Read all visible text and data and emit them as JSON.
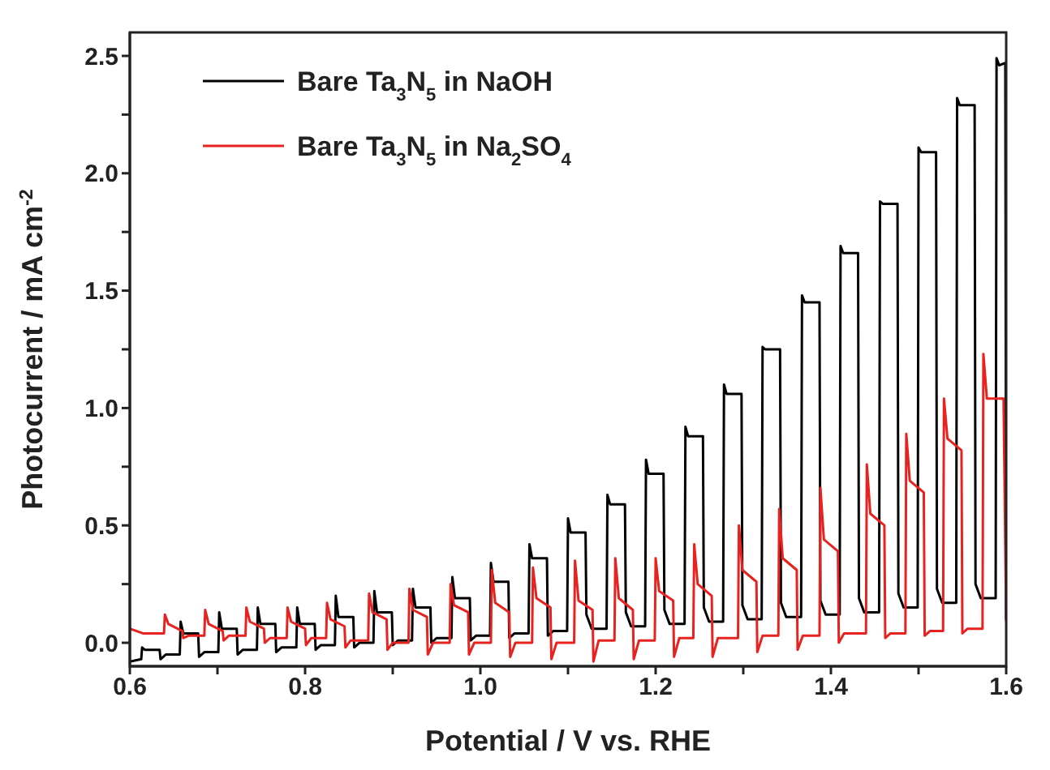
{
  "chart_data": {
    "type": "line",
    "xlabel": "Potential / V vs. RHE",
    "ylabel": "Photocurrent / mA cm$^{-2}$",
    "xlim": [
      0.6,
      1.6
    ],
    "ylim": [
      -0.1,
      2.6
    ],
    "xticks": [
      {
        "value": 0.6,
        "label": "0.6"
      },
      {
        "value": 0.7,
        "label": null
      },
      {
        "value": 0.8,
        "label": "0.8"
      },
      {
        "value": 0.9,
        "label": null
      },
      {
        "value": 1,
        "label": "1.0"
      },
      {
        "value": 1.1,
        "label": null
      },
      {
        "value": 1.2,
        "label": "1.2"
      },
      {
        "value": 1.3,
        "label": null
      },
      {
        "value": 1.4,
        "label": "1.4"
      },
      {
        "value": 1.5,
        "label": null
      },
      {
        "value": 1.6,
        "label": "1.6"
      }
    ],
    "yticks": [
      {
        "value": 0,
        "label": "0.0"
      },
      {
        "value": 0.25,
        "label": null
      },
      {
        "value": 0.5,
        "label": "0.5"
      },
      {
        "value": 0.75,
        "label": null
      },
      {
        "value": 1,
        "label": "1.0"
      },
      {
        "value": 1.25,
        "label": null
      },
      {
        "value": 1.5,
        "label": "1.5"
      },
      {
        "value": 1.75,
        "label": null
      },
      {
        "value": 2,
        "label": "2.0"
      },
      {
        "value": 2.25,
        "label": null
      },
      {
        "value": 2.5,
        "label": "2.5"
      }
    ],
    "grid": false,
    "legend": "top left",
    "marker": "none",
    "line_style": "solid",
    "series": [
      {
        "name": "Bare Ta$_{3}$N$_{5}$ in NaOH",
        "color": "#000000",
        "x": [
          0.6,
          0.613,
          0.614,
          0.617,
          0.634,
          0.635,
          0.641,
          0.657,
          0.658,
          0.661,
          0.678,
          0.679,
          0.685,
          0.701,
          0.702,
          0.705,
          0.722,
          0.723,
          0.729,
          0.745,
          0.746,
          0.749,
          0.766,
          0.767,
          0.773,
          0.79,
          0.791,
          0.794,
          0.811,
          0.812,
          0.818,
          0.834,
          0.835,
          0.838,
          0.855,
          0.856,
          0.862,
          0.878,
          0.879,
          0.882,
          0.899,
          0.9,
          0.906,
          0.922,
          0.923,
          0.926,
          0.943,
          0.944,
          0.95,
          0.967,
          0.968,
          0.971,
          0.988,
          0.989,
          0.995,
          1.011,
          1.012,
          1.015,
          1.032,
          1.033,
          1.039,
          1.055,
          1.056,
          1.059,
          1.076,
          1.077,
          1.083,
          1.099,
          1.1,
          1.103,
          1.12,
          1.121,
          1.127,
          1.144,
          1.145,
          1.148,
          1.165,
          1.166,
          1.172,
          1.188,
          1.189,
          1.192,
          1.209,
          1.21,
          1.216,
          1.233,
          1.234,
          1.237,
          1.254,
          1.255,
          1.261,
          1.277,
          1.278,
          1.281,
          1.298,
          1.299,
          1.305,
          1.321,
          1.322,
          1.325,
          1.342,
          1.343,
          1.349,
          1.366,
          1.367,
          1.37,
          1.387,
          1.388,
          1.394,
          1.41,
          1.411,
          1.414,
          1.431,
          1.432,
          1.438,
          1.455,
          1.456,
          1.459,
          1.476,
          1.477,
          1.483,
          1.499,
          1.5,
          1.503,
          1.52,
          1.521,
          1.527,
          1.543,
          1.544,
          1.547,
          1.564,
          1.565,
          1.571,
          1.588,
          1.589,
          1.592,
          1.599,
          1.6
        ],
        "values": [
          -0.08,
          -0.07,
          -0.02,
          -0.03,
          -0.03,
          -0.07,
          -0.05,
          -0.05,
          0.09,
          0.04,
          0.04,
          -0.06,
          -0.04,
          -0.04,
          0.13,
          0.06,
          0.06,
          -0.05,
          -0.03,
          -0.03,
          0.15,
          0.08,
          0.08,
          -0.04,
          -0.02,
          -0.02,
          0.15,
          0.08,
          0.08,
          -0.03,
          -0.01,
          -0.01,
          0.2,
          0.11,
          0.11,
          -0.02,
          0,
          0,
          0.22,
          0.13,
          0.13,
          -0.01,
          0.01,
          0.01,
          0.23,
          0.15,
          0.15,
          0,
          0.02,
          0.02,
          0.28,
          0.19,
          0.19,
          0.01,
          0.03,
          0.03,
          0.34,
          0.26,
          0.26,
          0.02,
          0.04,
          0.04,
          0.42,
          0.36,
          0.36,
          0.03,
          0.05,
          0.05,
          0.53,
          0.47,
          0.47,
          0.12,
          0.06,
          0.06,
          0.63,
          0.59,
          0.59,
          0.13,
          0.07,
          0.07,
          0.78,
          0.72,
          0.72,
          0.14,
          0.08,
          0.08,
          0.92,
          0.88,
          0.88,
          0.15,
          0.09,
          0.09,
          1.1,
          1.06,
          1.06,
          0.16,
          0.1,
          0.1,
          1.26,
          1.25,
          1.25,
          0.17,
          0.11,
          0.11,
          1.48,
          1.45,
          1.45,
          0.18,
          0.12,
          0.12,
          1.69,
          1.66,
          1.66,
          0.19,
          0.13,
          0.13,
          1.88,
          1.87,
          1.87,
          0.21,
          0.15,
          0.15,
          2.11,
          2.09,
          2.09,
          0.23,
          0.17,
          0.17,
          2.32,
          2.29,
          2.29,
          0.25,
          0.19,
          0.19,
          2.49,
          2.46,
          2.47,
          0.1
        ]
      },
      {
        "name": "Bare Ta$_{3}$N$_{5}$ in Na$_{2}$SO$_{4}$",
        "color": "#e8221f",
        "x": [
          0.6,
          0.615,
          0.639,
          0.64,
          0.644,
          0.66,
          0.661,
          0.667,
          0.685,
          0.686,
          0.69,
          0.706,
          0.707,
          0.713,
          0.732,
          0.733,
          0.737,
          0.753,
          0.754,
          0.76,
          0.779,
          0.78,
          0.784,
          0.8,
          0.801,
          0.807,
          0.824,
          0.825,
          0.829,
          0.845,
          0.846,
          0.852,
          0.872,
          0.873,
          0.877,
          0.893,
          0.894,
          0.9,
          0.918,
          0.919,
          0.923,
          0.939,
          0.94,
          0.946,
          0.965,
          0.966,
          0.97,
          0.986,
          0.987,
          0.993,
          1.012,
          1.013,
          1.017,
          1.033,
          1.034,
          1.04,
          1.059,
          1.06,
          1.064,
          1.08,
          1.081,
          1.087,
          1.107,
          1.108,
          1.112,
          1.128,
          1.129,
          1.135,
          1.153,
          1.154,
          1.158,
          1.174,
          1.175,
          1.181,
          1.199,
          1.2,
          1.204,
          1.22,
          1.221,
          1.227,
          1.243,
          1.244,
          1.248,
          1.264,
          1.265,
          1.271,
          1.294,
          1.295,
          1.299,
          1.315,
          1.316,
          1.322,
          1.34,
          1.341,
          1.345,
          1.361,
          1.362,
          1.368,
          1.387,
          1.388,
          1.392,
          1.408,
          1.409,
          1.415,
          1.44,
          1.441,
          1.445,
          1.461,
          1.462,
          1.468,
          1.485,
          1.486,
          1.49,
          1.506,
          1.507,
          1.513,
          1.528,
          1.529,
          1.533,
          1.549,
          1.55,
          1.556,
          1.573,
          1.574,
          1.578,
          1.597,
          1.6
        ],
        "values": [
          0.06,
          0.04,
          0.04,
          0.12,
          0.08,
          0.05,
          0.02,
          0.03,
          0.03,
          0.14,
          0.08,
          0.05,
          0.01,
          0.03,
          0.03,
          0.15,
          0.09,
          0.06,
          0,
          0.02,
          0.02,
          0.15,
          0.09,
          0.06,
          -0.01,
          0.02,
          0.02,
          0.17,
          0.1,
          0.07,
          -0.02,
          0.01,
          0.01,
          0.21,
          0.13,
          0.1,
          -0.03,
          0,
          0,
          0.23,
          0.14,
          0.11,
          -0.05,
          0,
          0,
          0.25,
          0.16,
          0.13,
          -0.05,
          0,
          0,
          0.31,
          0.17,
          0.13,
          -0.06,
          0,
          0,
          0.32,
          0.19,
          0.15,
          -0.07,
          0,
          0,
          0.35,
          0.18,
          0.14,
          -0.08,
          0.01,
          0.01,
          0.36,
          0.19,
          0.14,
          -0.07,
          0.01,
          0.01,
          0.36,
          0.22,
          0.18,
          -0.06,
          0.02,
          0.02,
          0.42,
          0.25,
          0.2,
          -0.06,
          0.02,
          0.02,
          0.5,
          0.31,
          0.26,
          -0.04,
          0.03,
          0.03,
          0.57,
          0.36,
          0.31,
          -0.03,
          0.03,
          0.03,
          0.66,
          0.44,
          0.39,
          0,
          0.04,
          0.04,
          0.76,
          0.55,
          0.5,
          0.02,
          0.04,
          0.04,
          0.89,
          0.69,
          0.64,
          0.03,
          0.05,
          0.05,
          1.04,
          0.87,
          0.82,
          0.04,
          0.06,
          0.06,
          1.23,
          1.04,
          1.04,
          0.09
        ]
      }
    ]
  }
}
